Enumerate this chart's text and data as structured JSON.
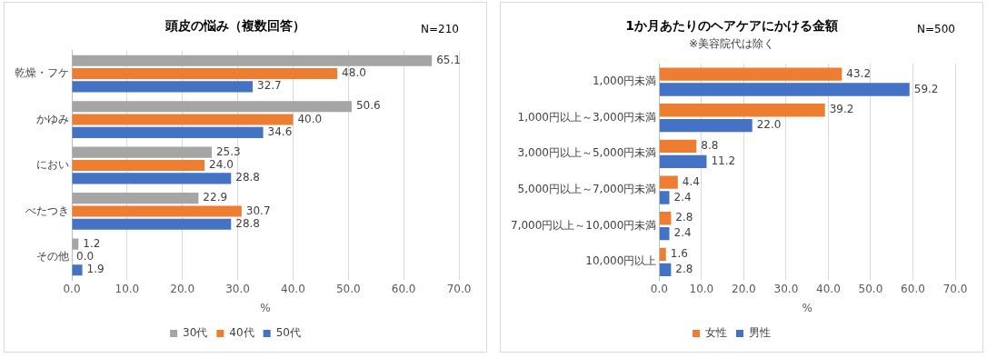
{
  "chart_data": [
    {
      "type": "bar",
      "orientation": "horizontal",
      "title": "頭皮の悩み（複数回答）",
      "annotations": [
        "N=210"
      ],
      "xlabel": "%",
      "categories": [
        "乾燥・フケ",
        "かゆみ",
        "におい",
        "べたつき",
        "その他"
      ],
      "series": [
        {
          "name": "30代",
          "color": "#a5a5a5",
          "values": [
            65.1,
            50.6,
            25.3,
            22.9,
            1.2
          ],
          "value_labels": [
            "65.1",
            "50.6",
            "25.3",
            "22.9",
            "1.2"
          ]
        },
        {
          "name": "40代",
          "color": "#ed7d31",
          "values": [
            48.0,
            40.0,
            24.0,
            30.7,
            0.0
          ],
          "value_labels": [
            "48.0",
            "40.0",
            "24.0",
            "30.7",
            "0.0"
          ]
        },
        {
          "name": "50代",
          "color": "#4472c4",
          "values": [
            32.7,
            34.6,
            28.8,
            28.8,
            1.9
          ],
          "value_labels": [
            "32.7",
            "34.6",
            "28.8",
            "28.8",
            "1.9"
          ]
        }
      ],
      "xlim": [
        0,
        70
      ],
      "xticks": [
        {
          "value": 0,
          "label": "0.0"
        },
        {
          "value": 10,
          "label": "10.0"
        },
        {
          "value": 20,
          "label": "20.0"
        },
        {
          "value": 30,
          "label": "30.0"
        },
        {
          "value": 40,
          "label": "40.0"
        },
        {
          "value": 50,
          "label": "50.0"
        },
        {
          "value": 60,
          "label": "60.0"
        },
        {
          "value": 70,
          "label": "70.0"
        }
      ],
      "grid": "x",
      "legend": "bottom"
    },
    {
      "type": "bar",
      "orientation": "horizontal",
      "title": "1か月あたりのヘアケアにかける金額",
      "subtitle": "※美容院代は除く",
      "annotations": [
        "N=500"
      ],
      "xlabel": "%",
      "categories": [
        "1,000円未満",
        "1,000円以上～3,000円未満",
        "3,000円以上～5,000円未満",
        "5,000円以上～7,000円未満",
        "7,000円以上～10,000円未満",
        "10,000円以上"
      ],
      "series": [
        {
          "name": "女性",
          "color": "#ed7d31",
          "values": [
            43.2,
            39.2,
            8.8,
            4.4,
            2.8,
            1.6
          ],
          "value_labels": [
            "43.2",
            "39.2",
            "8.8",
            "4.4",
            "2.8",
            "1.6"
          ]
        },
        {
          "name": "男性",
          "color": "#4472c4",
          "values": [
            59.2,
            22.0,
            11.2,
            2.4,
            2.4,
            2.8
          ],
          "value_labels": [
            "59.2",
            "22.0",
            "11.2",
            "2.4",
            "2.4",
            "2.8"
          ]
        }
      ],
      "xlim": [
        0,
        70
      ],
      "xticks": [
        {
          "value": 0,
          "label": "0.0"
        },
        {
          "value": 10,
          "label": "10.0"
        },
        {
          "value": 20,
          "label": "20.0"
        },
        {
          "value": 30,
          "label": "30.0"
        },
        {
          "value": 40,
          "label": "40.0"
        },
        {
          "value": 50,
          "label": "50.0"
        },
        {
          "value": 60,
          "label": "60.0"
        },
        {
          "value": 70,
          "label": "70.0"
        }
      ],
      "grid": "x",
      "legend": "bottom"
    }
  ]
}
